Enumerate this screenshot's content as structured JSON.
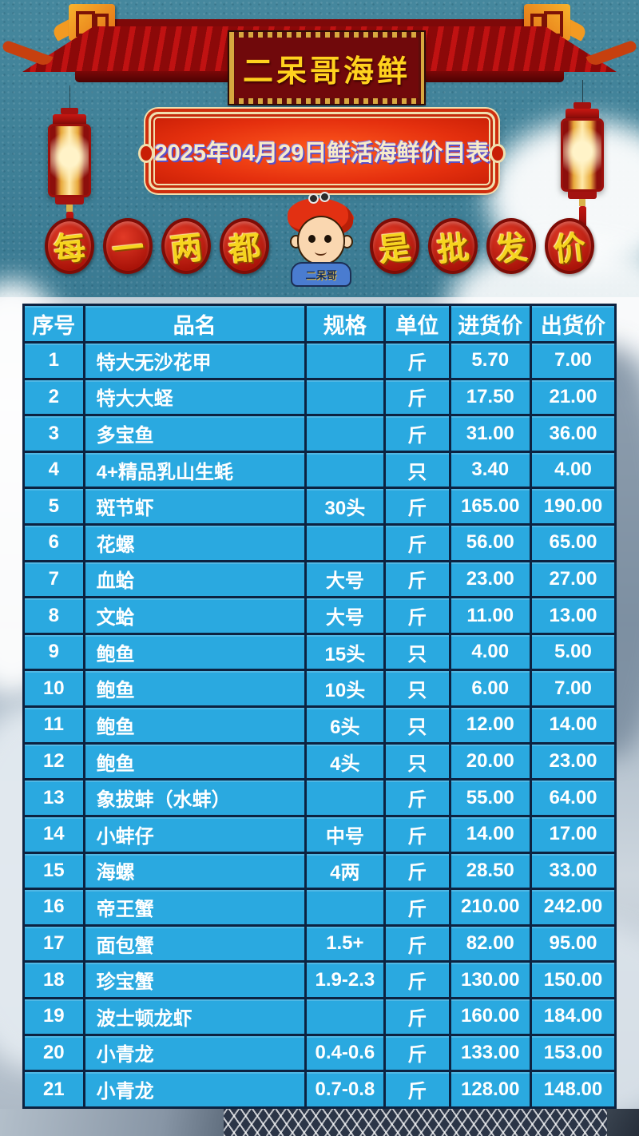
{
  "poster": {
    "shop_name": "二呆哥海鲜",
    "date_title": "2025年04月29日鲜活海鲜价目表",
    "tagline": {
      "left_chars": [
        "每",
        "一",
        "两",
        "都"
      ],
      "right_chars": [
        "是",
        "批",
        "发",
        "价"
      ],
      "mascot_shirt_label": "二呆哥"
    },
    "table": {
      "columns": [
        "序号",
        "品名",
        "规格",
        "单位",
        "进货价",
        "出货价"
      ],
      "rows": [
        [
          "1",
          "特大无沙花甲",
          "",
          "斤",
          "5.70",
          "7.00"
        ],
        [
          "2",
          "特大大蛏",
          "",
          "斤",
          "17.50",
          "21.00"
        ],
        [
          "3",
          "多宝鱼",
          "",
          "斤",
          "31.00",
          "36.00"
        ],
        [
          "4",
          "4+精品乳山生蚝",
          "",
          "只",
          "3.40",
          "4.00"
        ],
        [
          "5",
          "斑节虾",
          "30头",
          "斤",
          "165.00",
          "190.00"
        ],
        [
          "6",
          "花螺",
          "",
          "斤",
          "56.00",
          "65.00"
        ],
        [
          "7",
          "血蛤",
          "大号",
          "斤",
          "23.00",
          "27.00"
        ],
        [
          "8",
          "文蛤",
          "大号",
          "斤",
          "11.00",
          "13.00"
        ],
        [
          "9",
          "鲍鱼",
          "15头",
          "只",
          "4.00",
          "5.00"
        ],
        [
          "10",
          "鲍鱼",
          "10头",
          "只",
          "6.00",
          "7.00"
        ],
        [
          "11",
          "鲍鱼",
          "6头",
          "只",
          "12.00",
          "14.00"
        ],
        [
          "12",
          "鲍鱼",
          "4头",
          "只",
          "20.00",
          "23.00"
        ],
        [
          "13",
          "象拔蚌（水蚌）",
          "",
          "斤",
          "55.00",
          "64.00"
        ],
        [
          "14",
          "小蚌仔",
          "中号",
          "斤",
          "14.00",
          "17.00"
        ],
        [
          "15",
          "海螺",
          "4两",
          "斤",
          "28.50",
          "33.00"
        ],
        [
          "16",
          "帝王蟹",
          "",
          "斤",
          "210.00",
          "242.00"
        ],
        [
          "17",
          "面包蟹",
          "1.5+",
          "斤",
          "82.00",
          "95.00"
        ],
        [
          "18",
          "珍宝蟹",
          "1.9-2.3",
          "斤",
          "130.00",
          "150.00"
        ],
        [
          "19",
          "波士顿龙虾",
          "",
          "斤",
          "160.00",
          "184.00"
        ],
        [
          "20",
          "小青龙",
          "0.4-0.6",
          "斤",
          "133.00",
          "153.00"
        ],
        [
          "21",
          "小青龙",
          "0.7-0.8",
          "斤",
          "128.00",
          "148.00"
        ]
      ]
    },
    "colors": {
      "sky": "#3f8098",
      "roof_red": "#9c0e0e",
      "plaque_bg": "#70090b",
      "plaque_text": "#ffd21e",
      "banner_bg": "#e5300e",
      "banner_text": "#f8ecca",
      "medallion_bg": "#c4281c",
      "medallion_text": "#f6d41f",
      "table_cell": "#2aa9e0",
      "table_border": "#0c2240",
      "lantern_glow": "#ffe9a8"
    }
  }
}
